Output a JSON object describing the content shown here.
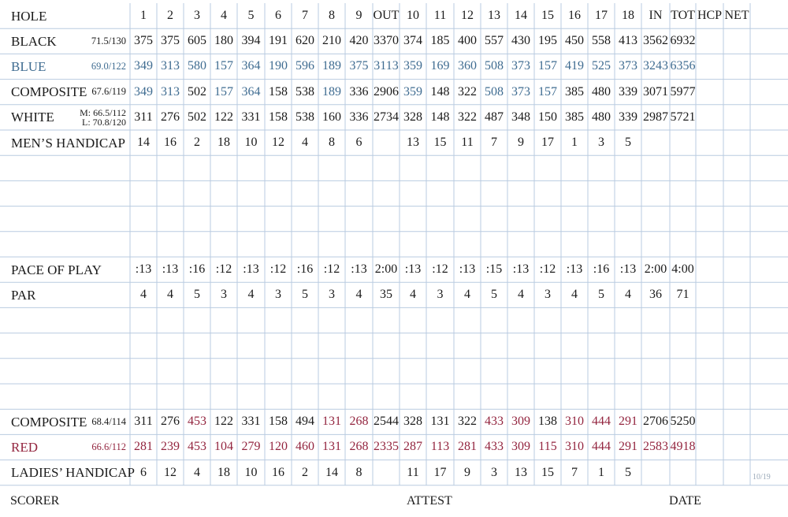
{
  "colors": {
    "black": "#1b1b1b",
    "blue": "#3f6c91",
    "red": "#93253f",
    "grid": "#b9cbe0",
    "code": "#9aa9b8"
  },
  "header": {
    "hole_label": "HOLE",
    "holes": [
      "1",
      "2",
      "3",
      "4",
      "5",
      "6",
      "7",
      "8",
      "9",
      "OUT",
      "10",
      "11",
      "12",
      "13",
      "14",
      "15",
      "16",
      "17",
      "18",
      "IN",
      "TOT",
      "HCP",
      "NET"
    ]
  },
  "rows": [
    {
      "label": "BLACK",
      "rating": "71.5/130",
      "color": "black",
      "values": [
        "375",
        "375",
        "605",
        "180",
        "394",
        "191",
        "620",
        "210",
        "420",
        "3370",
        "374",
        "185",
        "400",
        "557",
        "430",
        "195",
        "450",
        "558",
        "413",
        "3562",
        "6932",
        "",
        ""
      ]
    },
    {
      "label": "BLUE",
      "rating": "69.0/122",
      "color": "blue",
      "values": [
        "349",
        "313",
        "580",
        "157",
        "364",
        "190",
        "596",
        "189",
        "375",
        "3113",
        "359",
        "169",
        "360",
        "508",
        "373",
        "157",
        "419",
        "525",
        "373",
        "3243",
        "6356",
        "",
        ""
      ]
    },
    {
      "label": "COMPOSITE",
      "rating": "67.6/119",
      "color": "black",
      "values": [
        "349",
        "313",
        "502",
        "157",
        "364",
        "158",
        "538",
        "189",
        "336",
        "2906",
        "359",
        "148",
        "322",
        "508",
        "373",
        "157",
        "385",
        "480",
        "339",
        "3071",
        "5977",
        "",
        ""
      ],
      "value_colors": [
        "blue",
        "blue",
        "black",
        "blue",
        "blue",
        "black",
        "black",
        "blue",
        "black",
        "black",
        "blue",
        "black",
        "black",
        "blue",
        "blue",
        "blue",
        "black",
        "black",
        "black",
        "black",
        "black",
        "black",
        "black"
      ]
    },
    {
      "label": "WHITE",
      "rating_m": "M: 66.5/112",
      "rating_l": "L: 70.8/120",
      "color": "black",
      "values": [
        "311",
        "276",
        "502",
        "122",
        "331",
        "158",
        "538",
        "160",
        "336",
        "2734",
        "328",
        "148",
        "322",
        "487",
        "348",
        "150",
        "385",
        "480",
        "339",
        "2987",
        "5721",
        "",
        ""
      ]
    },
    {
      "label": "MEN’S HANDICAP",
      "color": "black",
      "values": [
        "14",
        "16",
        "2",
        "18",
        "10",
        "12",
        "4",
        "8",
        "6",
        "",
        "13",
        "15",
        "11",
        "7",
        "9",
        "17",
        "1",
        "3",
        "5",
        "",
        "",
        "",
        ""
      ]
    },
    {
      "label": "",
      "values": []
    },
    {
      "label": "",
      "values": []
    },
    {
      "label": "",
      "values": []
    },
    {
      "label": "",
      "values": []
    },
    {
      "label": "PACE OF PLAY",
      "color": "black",
      "values": [
        ":13",
        ":13",
        ":16",
        ":12",
        ":13",
        ":12",
        ":16",
        ":12",
        ":13",
        "2:00",
        ":13",
        ":12",
        ":13",
        ":15",
        ":13",
        ":12",
        ":13",
        ":16",
        ":13",
        "2:00",
        "4:00",
        "",
        ""
      ]
    },
    {
      "label": "PAR",
      "color": "black",
      "values": [
        "4",
        "4",
        "5",
        "3",
        "4",
        "3",
        "5",
        "3",
        "4",
        "35",
        "4",
        "3",
        "4",
        "5",
        "4",
        "3",
        "4",
        "5",
        "4",
        "36",
        "71",
        "",
        ""
      ]
    },
    {
      "label": "",
      "values": []
    },
    {
      "label": "",
      "values": []
    },
    {
      "label": "",
      "values": []
    },
    {
      "label": "",
      "values": []
    },
    {
      "label": "COMPOSITE",
      "rating": "68.4/114",
      "color": "black",
      "values": [
        "311",
        "276",
        "453",
        "122",
        "331",
        "158",
        "494",
        "131",
        "268",
        "2544",
        "328",
        "131",
        "322",
        "433",
        "309",
        "138",
        "310",
        "444",
        "291",
        "2706",
        "5250",
        "",
        ""
      ],
      "value_colors": [
        "black",
        "black",
        "red",
        "black",
        "black",
        "black",
        "black",
        "red",
        "red",
        "black",
        "black",
        "black",
        "black",
        "red",
        "red",
        "black",
        "red",
        "red",
        "red",
        "black",
        "black",
        "black",
        "black"
      ]
    },
    {
      "label": "RED",
      "rating": "66.6/112",
      "color": "red",
      "values": [
        "281",
        "239",
        "453",
        "104",
        "279",
        "120",
        "460",
        "131",
        "268",
        "2335",
        "287",
        "113",
        "281",
        "433",
        "309",
        "115",
        "310",
        "444",
        "291",
        "2583",
        "4918",
        "",
        ""
      ]
    },
    {
      "label": "LADIES’ HANDICAP",
      "color": "black",
      "values": [
        "6",
        "12",
        "4",
        "18",
        "10",
        "16",
        "2",
        "14",
        "8",
        "",
        "11",
        "17",
        "9",
        "3",
        "13",
        "15",
        "7",
        "1",
        "5",
        "",
        "",
        "",
        ""
      ]
    }
  ],
  "footer": {
    "scorer": "SCORER",
    "attest": "ATTEST",
    "date": "DATE",
    "code": "10/19"
  }
}
